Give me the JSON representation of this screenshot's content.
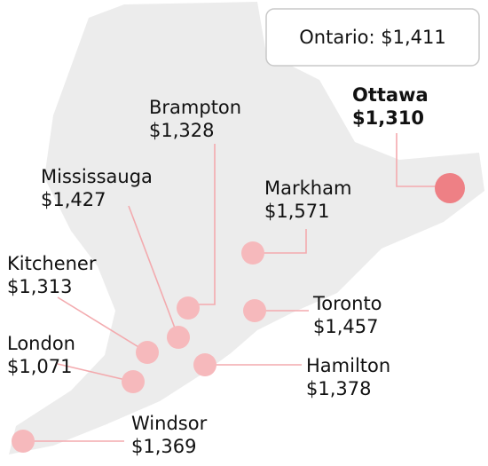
{
  "summary": "Ontario: $1,411",
  "cities": [
    {
      "name": "Brampton",
      "price": "$1,328"
    },
    {
      "name": "Ottawa",
      "price": "$1,310"
    },
    {
      "name": "Mississauga",
      "price": "$1,427"
    },
    {
      "name": "Markham",
      "price": "$1,571"
    },
    {
      "name": "Kitchener",
      "price": "$1,313"
    },
    {
      "name": "Toronto",
      "price": "$1,457"
    },
    {
      "name": "London",
      "price": "$1,071"
    },
    {
      "name": "Hamilton",
      "price": "$1,378"
    },
    {
      "name": "Windsor",
      "price": "$1,369"
    }
  ]
}
